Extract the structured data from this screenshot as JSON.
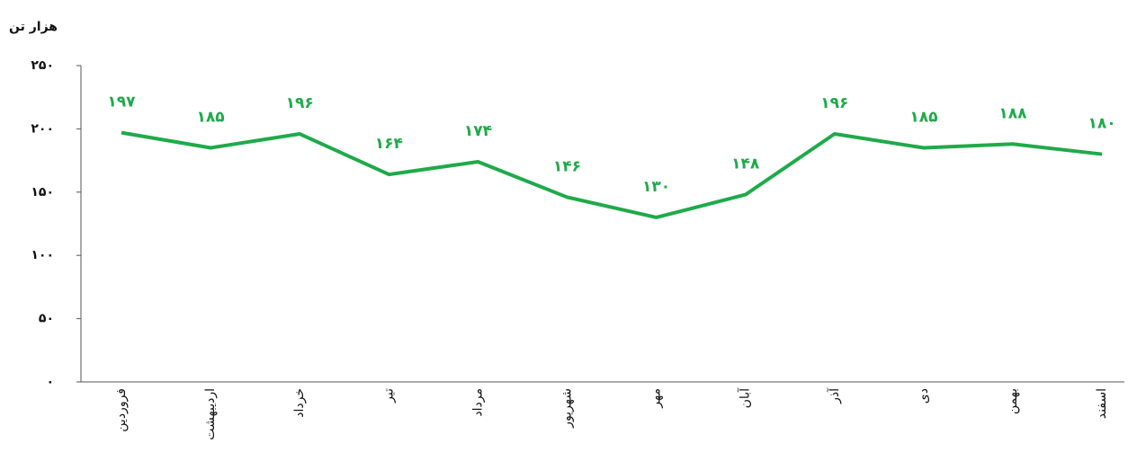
{
  "chart_data": {
    "type": "line",
    "y_label": "هزار تن",
    "categories": [
      "فروردین",
      "اردیبهشت",
      "خرداد",
      "تیر",
      "مرداد",
      "شهریور",
      "مهر",
      "آبان",
      "آذر",
      "دی",
      "بهمن",
      "اسفند"
    ],
    "values": [
      197,
      185,
      196,
      164,
      174,
      146,
      130,
      148,
      196,
      185,
      188,
      180
    ],
    "value_labels": [
      "۱۹۷",
      "۱۸۵",
      "۱۹۶",
      "۱۶۴",
      "۱۷۴",
      "۱۴۶",
      "۱۳۰",
      "۱۴۸",
      "۱۹۶",
      "۱۸۵",
      "۱۸۸",
      "۱۸۰"
    ],
    "color": "#1faa4a",
    "ylim": [
      0,
      250
    ],
    "yticks": [
      {
        "value": 0,
        "label": "۰"
      },
      {
        "value": 50,
        "label": "۵۰"
      },
      {
        "value": 100,
        "label": "۱۰۰"
      },
      {
        "value": 150,
        "label": "۱۵۰"
      },
      {
        "value": 200,
        "label": "۲۰۰"
      },
      {
        "value": 250,
        "label": "۲۵۰"
      }
    ]
  }
}
